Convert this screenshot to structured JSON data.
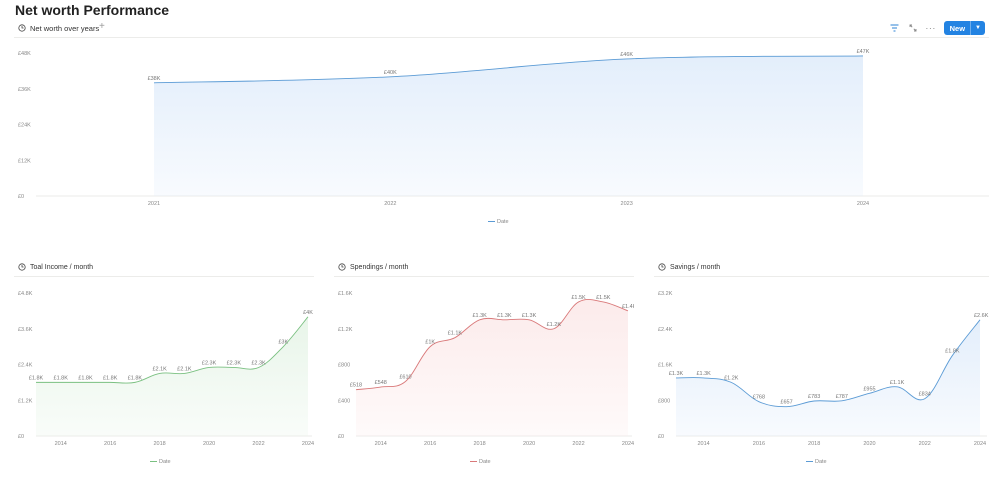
{
  "page": {
    "title": "Net worth Performance"
  },
  "view_header": {
    "tab_label": "Net worth over years",
    "toolbar": {
      "filter_icon": "filter-icon",
      "expand_icon": "expand-icon",
      "more_icon": "more-icon",
      "new_label": "New"
    }
  },
  "chart_data": [
    {
      "id": "networth",
      "type": "area",
      "title": "Net worth over years",
      "color": "#5b9bd5",
      "fill": "#e3eefb",
      "x": [
        "2021",
        "2022",
        "2023",
        "2024"
      ],
      "x_ticks": [
        "2021",
        "2022",
        "2023",
        "2024"
      ],
      "values": [
        38000,
        40000,
        46000,
        47000
      ],
      "data_labels": [
        "£38K",
        "£40K",
        "£46K",
        "£47K"
      ],
      "y_ticks": [
        0,
        12000,
        24000,
        36000,
        48000
      ],
      "y_tick_labels": [
        "£0",
        "£12K",
        "£24K",
        "£36K",
        "£48K"
      ],
      "ylim": [
        0,
        48000
      ],
      "legend": "Date"
    },
    {
      "id": "income",
      "type": "area",
      "title": "Toal Income / month",
      "color": "#7ac081",
      "fill": "#e8f5e9",
      "x": [
        2013,
        2014,
        2015,
        2016,
        2017,
        2018,
        2019,
        2020,
        2021,
        2022,
        2023,
        2024
      ],
      "x_ticks": [
        "2014",
        "2016",
        "2018",
        "2020",
        "2022",
        "2024"
      ],
      "values": [
        1800,
        1800,
        1800,
        1800,
        1800,
        2100,
        2100,
        2300,
        2300,
        2300,
        3000,
        4000
      ],
      "data_labels": [
        "£1.8K",
        "£1.8K",
        "£1.8K",
        "£1.8K",
        "£1.8K",
        "£2.1K",
        "£2.1K",
        "£2.3K",
        "£2.3K",
        "£2.3K",
        "£3K",
        "£4K"
      ],
      "y_ticks": [
        0,
        1200,
        2400,
        3600,
        4800
      ],
      "y_tick_labels": [
        "£0",
        "£1.2K",
        "£2.4K",
        "£3.6K",
        "£4.8K"
      ],
      "ylim": [
        0,
        4800
      ],
      "legend": "Date"
    },
    {
      "id": "spendings",
      "type": "area",
      "title": "Spendings / month",
      "color": "#d9797a",
      "fill": "#fcebeb",
      "x": [
        2013,
        2014,
        2015,
        2016,
        2017,
        2018,
        2019,
        2020,
        2021,
        2022,
        2023,
        2024
      ],
      "x_ticks": [
        "2014",
        "2016",
        "2018",
        "2020",
        "2022",
        "2024"
      ],
      "values": [
        518,
        548,
        610,
        1000,
        1100,
        1300,
        1300,
        1300,
        1200,
        1500,
        1500,
        1400
      ],
      "data_labels": [
        "£518",
        "£548",
        "£610",
        "£1K",
        "£1.1K",
        "£1.3K",
        "£1.3K",
        "£1.3K",
        "£1.2K",
        "£1.5K",
        "£1.5K",
        "£1.4K"
      ],
      "y_ticks": [
        0,
        400,
        800,
        1200,
        1600
      ],
      "y_tick_labels": [
        "£0",
        "£400",
        "£800",
        "£1.2K",
        "£1.6K"
      ],
      "ylim": [
        0,
        1600
      ],
      "legend": "Date"
    },
    {
      "id": "savings",
      "type": "area",
      "title": "Savings / month",
      "color": "#5b9bd5",
      "fill": "#e3eefb",
      "x": [
        2013,
        2014,
        2015,
        2016,
        2017,
        2018,
        2019,
        2020,
        2021,
        2022,
        2023,
        2024
      ],
      "x_ticks": [
        "2014",
        "2016",
        "2018",
        "2020",
        "2022",
        "2024"
      ],
      "values": [
        1300,
        1300,
        1200,
        768,
        657,
        783,
        787,
        955,
        1100,
        834,
        1800,
        2600
      ],
      "data_labels": [
        "£1.3K",
        "£1.3K",
        "£1.2K",
        "£768",
        "£657",
        "£783",
        "£787",
        "£955",
        "£1.1K",
        "£834",
        "£1.8K",
        "£2.6K"
      ],
      "y_ticks": [
        0,
        800,
        1600,
        2400,
        3200
      ],
      "y_tick_labels": [
        "£0",
        "£800",
        "£1.6K",
        "£2.4K",
        "£3.2K"
      ],
      "ylim": [
        0,
        3200
      ],
      "legend": "Date"
    }
  ]
}
